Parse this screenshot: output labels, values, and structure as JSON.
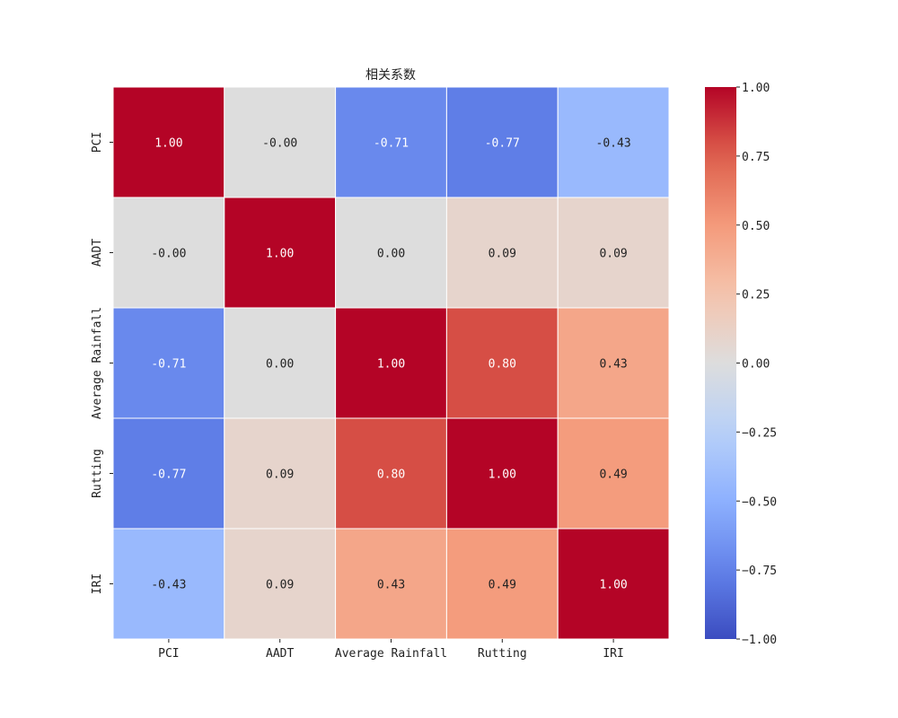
{
  "chart_data": {
    "type": "heatmap",
    "title": "相关系数",
    "xlabel": "",
    "ylabel": "",
    "x_labels": [
      "PCI",
      "AADT",
      "Average Rainfall",
      "Rutting",
      "IRI"
    ],
    "y_labels": [
      "PCI",
      "AADT",
      "Average Rainfall",
      "Rutting",
      "IRI"
    ],
    "values": [
      [
        1.0,
        -0.0,
        -0.71,
        -0.77,
        -0.43
      ],
      [
        -0.0,
        1.0,
        0.0,
        0.09,
        0.09
      ],
      [
        -0.71,
        0.0,
        1.0,
        0.8,
        0.43
      ],
      [
        -0.77,
        0.09,
        0.8,
        1.0,
        0.49
      ],
      [
        -0.43,
        0.09,
        0.43,
        0.49,
        1.0
      ]
    ],
    "cell_labels": [
      [
        "1.00",
        "-0.00",
        "-0.71",
        "-0.77",
        "-0.43"
      ],
      [
        "-0.00",
        "1.00",
        "0.00",
        "0.09",
        "0.09"
      ],
      [
        "-0.71",
        "0.00",
        "1.00",
        "0.80",
        "0.43"
      ],
      [
        "-0.77",
        "0.09",
        "0.80",
        "1.00",
        "0.49"
      ],
      [
        "-0.43",
        "0.09",
        "0.43",
        "0.49",
        "1.00"
      ]
    ],
    "colormap": "coolwarm",
    "vmin": -1.0,
    "vmax": 1.0,
    "colorbar": {
      "ticks": [
        1.0,
        0.75,
        0.5,
        0.25,
        0.0,
        -0.25,
        -0.5,
        -0.75,
        -1.0
      ],
      "tick_labels": [
        "1.00",
        "0.75",
        "0.50",
        "0.25",
        "0.00",
        "−0.25",
        "−0.50",
        "−0.75",
        "−1.00"
      ]
    },
    "grid": true,
    "legend": "colorbar-right"
  }
}
